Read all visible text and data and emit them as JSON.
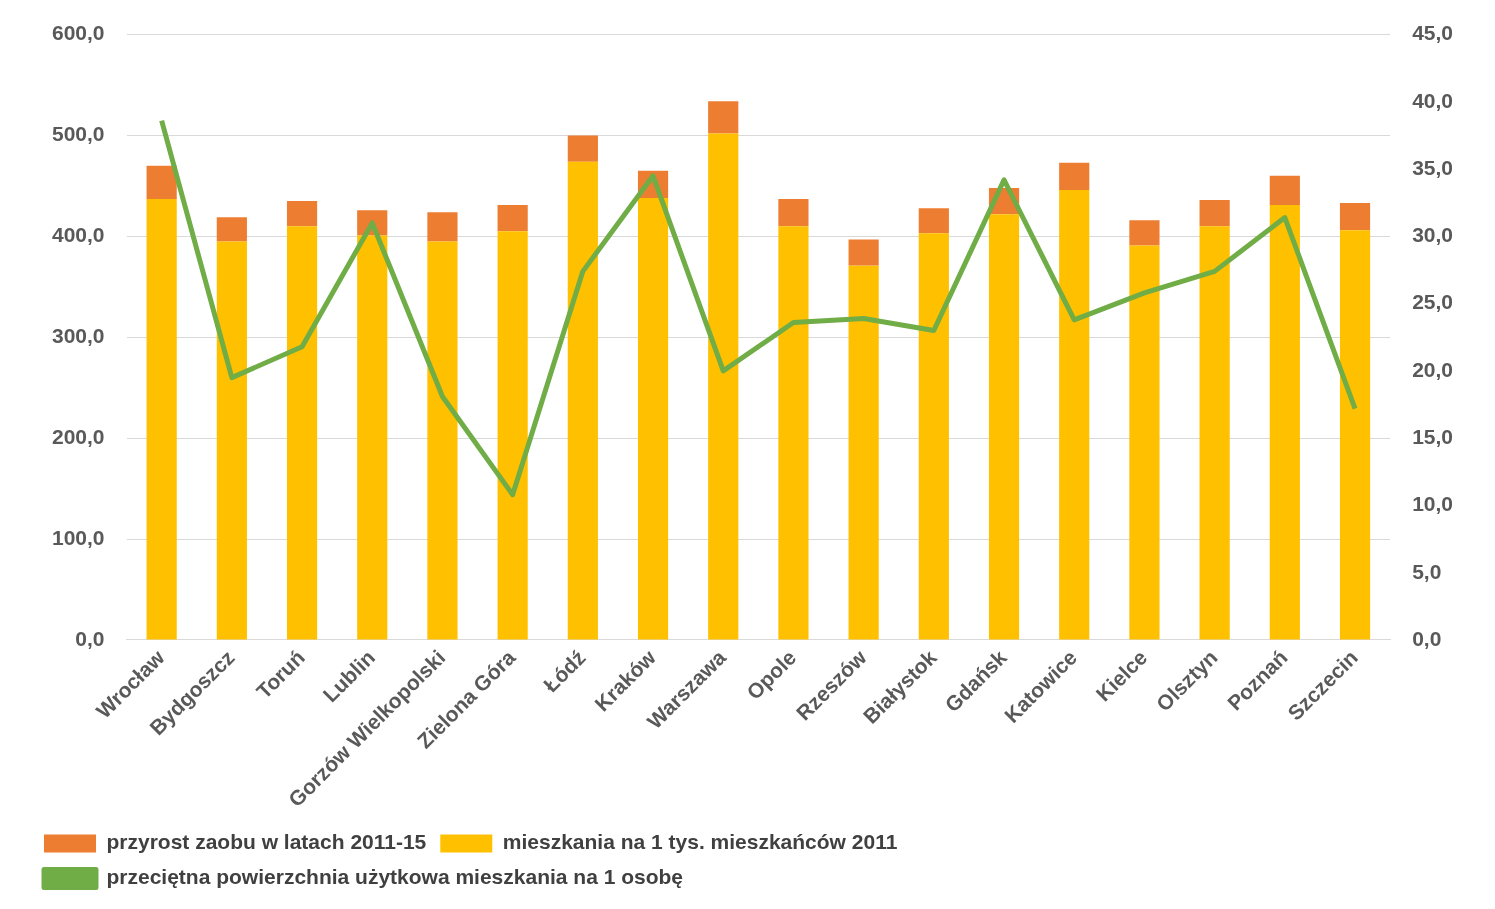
{
  "chart_data": {
    "type": "bar",
    "stacked": true,
    "legend": "bottom",
    "grid": "y",
    "categories": [
      "Wrocław",
      "Bydgoszcz",
      "Toruń",
      "Lublin",
      "Gorzów Wielkopolski",
      "Zielona Góra",
      "Łódź",
      "Kraków",
      "Warszawa",
      "Opole",
      "Rzeszów",
      "Białystok",
      "Gdańsk",
      "Katowice",
      "Kielce",
      "Olsztyn",
      "Poznań",
      "Szczecin"
    ],
    "series": [
      {
        "name": "mieszkania na 1 tys. mieszkańców 2011",
        "color": "#ffc000",
        "values": [
          437,
          395,
          410,
          401,
          395,
          405,
          474,
          438,
          502,
          410,
          371,
          403,
          422,
          446,
          391,
          410,
          431,
          406
        ]
      },
      {
        "name": "przyrost zaobu w latach 2011-15",
        "color": "#ed7d31",
        "values": [
          33,
          24,
          25,
          25,
          29,
          26,
          26,
          27,
          32,
          27,
          26,
          25,
          26,
          27,
          25,
          26,
          29,
          27
        ]
      },
      {
        "name": "przeciętna powierzchnia użytkowa mieszkania na 1 osobę",
        "type": "line",
        "axis": "y2",
        "color": "#70ad47",
        "values": [
          38.6,
          19.5,
          21.8,
          31.0,
          18.1,
          10.8,
          27.4,
          34.5,
          20.0,
          23.6,
          23.9,
          23.0,
          34.2,
          23.8,
          25.8,
          27.4,
          31.4,
          17.2
        ]
      }
    ],
    "ylim": [
      0,
      600
    ],
    "yticks": [
      {
        "value": 0,
        "label": "0,0"
      },
      {
        "value": 100,
        "label": "100,0"
      },
      {
        "value": 200,
        "label": "200,0"
      },
      {
        "value": 300,
        "label": "300,0"
      },
      {
        "value": 400,
        "label": "400,0"
      },
      {
        "value": 500,
        "label": "500,0"
      },
      {
        "value": 600,
        "label": "600,0"
      }
    ],
    "y2lim": [
      0,
      45
    ],
    "y2ticks": [
      {
        "value": 0,
        "label": "0,0"
      },
      {
        "value": 5,
        "label": "5,0"
      },
      {
        "value": 10,
        "label": "10,0"
      },
      {
        "value": 15,
        "label": "15,0"
      },
      {
        "value": 20,
        "label": "20,0"
      },
      {
        "value": 25,
        "label": "25,0"
      },
      {
        "value": 30,
        "label": "30,0"
      },
      {
        "value": 35,
        "label": "35,0"
      },
      {
        "value": 40,
        "label": "40,0"
      },
      {
        "value": 45,
        "label": "45,0"
      }
    ]
  }
}
